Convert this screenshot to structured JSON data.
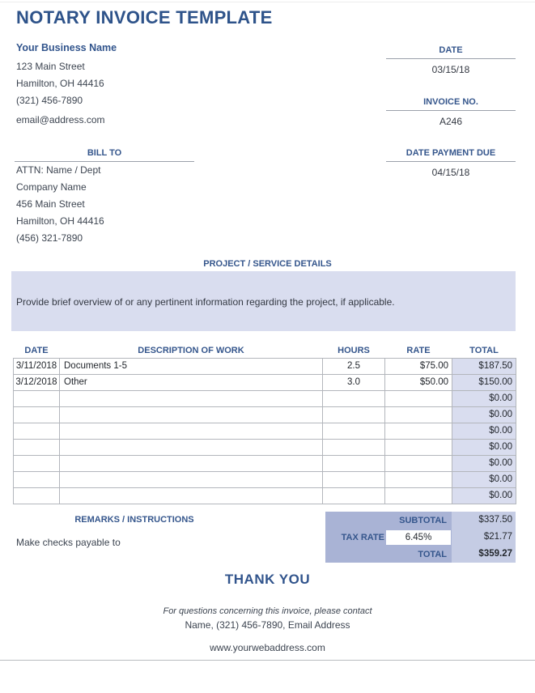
{
  "page": {
    "title": "NOTARY INVOICE TEMPLATE",
    "colors": {
      "heading_navy": "#31548C",
      "lavender_fill": "#D9DDEF",
      "summary_label_fill": "#A9B3D5",
      "summary_value_fill": "#C5CCE4",
      "table_border": "#B3B6BC"
    }
  },
  "business": {
    "name": "Your Business Name",
    "address_line1": "123 Main Street",
    "address_line2": "Hamilton, OH 44416",
    "phone": "(321) 456-7890",
    "email": "email@address.com"
  },
  "invoice_meta": {
    "date_label": "DATE",
    "date_value": "03/15/18",
    "invoice_no_label": "INVOICE NO.",
    "invoice_no_value": "A246",
    "payment_due_label": "DATE PAYMENT DUE",
    "payment_due_value": "04/15/18"
  },
  "bill_to": {
    "label": "BILL TO",
    "attn": "ATTN: Name / Dept",
    "company": "Company Name",
    "address_line1": "456 Main Street",
    "address_line2": "Hamilton, OH 44416",
    "phone": "(456) 321-7890"
  },
  "project_details": {
    "label": "PROJECT / SERVICE DETAILS",
    "overview": "Provide brief overview of or any pertinent information regarding the project, if applicable."
  },
  "work_table": {
    "headers": [
      "DATE",
      "DESCRIPTION OF WORK",
      "HOURS",
      "RATE",
      "TOTAL"
    ],
    "rows": [
      {
        "date": "3/11/2018",
        "description": "Documents 1-5",
        "hours": "2.5",
        "rate": "$75.00",
        "total": "$187.50"
      },
      {
        "date": "3/12/2018",
        "description": "Other",
        "hours": "3.0",
        "rate": "$50.00",
        "total": "$150.00"
      },
      {
        "date": "",
        "description": "",
        "hours": "",
        "rate": "",
        "total": "$0.00"
      },
      {
        "date": "",
        "description": "",
        "hours": "",
        "rate": "",
        "total": "$0.00"
      },
      {
        "date": "",
        "description": "",
        "hours": "",
        "rate": "",
        "total": "$0.00"
      },
      {
        "date": "",
        "description": "",
        "hours": "",
        "rate": "",
        "total": "$0.00"
      },
      {
        "date": "",
        "description": "",
        "hours": "",
        "rate": "",
        "total": "$0.00"
      },
      {
        "date": "",
        "description": "",
        "hours": "",
        "rate": "",
        "total": "$0.00"
      },
      {
        "date": "",
        "description": "",
        "hours": "",
        "rate": "",
        "total": "$0.00"
      }
    ]
  },
  "remarks": {
    "label": "REMARKS / INSTRUCTIONS",
    "note": "Make checks payable to"
  },
  "summary": {
    "subtotal_label": "SUBTOTAL",
    "subtotal_value": "$337.50",
    "tax_rate_label": "TAX RATE",
    "tax_rate_value": "6.45%",
    "tax_amount_value": "$21.77",
    "total_label": "TOTAL",
    "total_value": "$359.27"
  },
  "footer": {
    "thank_you": "THANK YOU",
    "contact_note": "For questions concerning this invoice, please contact",
    "contact_info": "Name, (321) 456-7890, Email Address",
    "website": "www.yourwebaddress.com"
  }
}
